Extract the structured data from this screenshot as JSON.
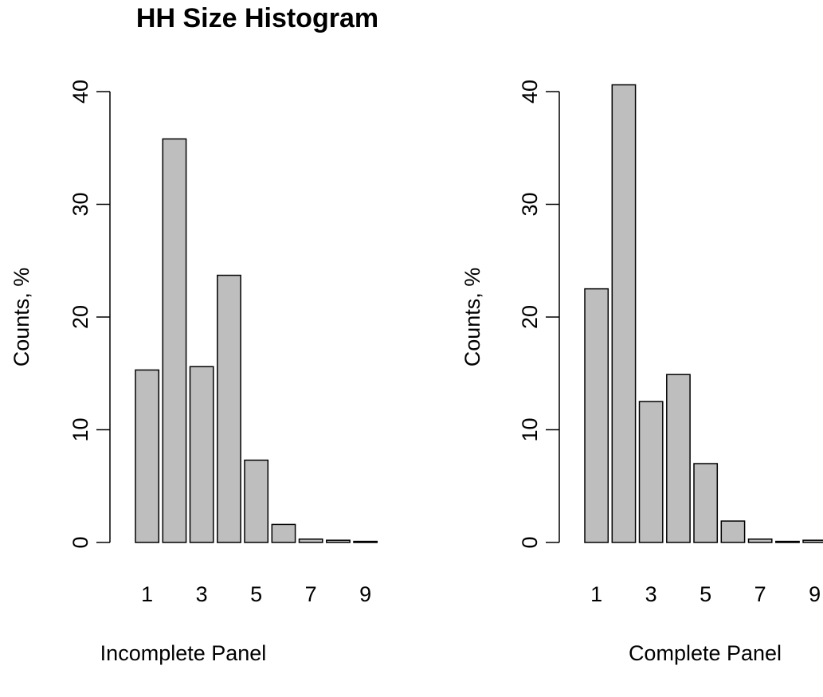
{
  "chart_data": [
    {
      "type": "bar",
      "title": "HH Size Histogram",
      "xlabel": "Incomplete Panel",
      "ylabel": "Counts, %",
      "categories": [
        "1",
        "2",
        "3",
        "4",
        "5",
        "6",
        "7",
        "8",
        "9"
      ],
      "x_tick_labels": [
        "1",
        "3",
        "5",
        "7",
        "9"
      ],
      "y_ticks": [
        0,
        10,
        20,
        30,
        40
      ],
      "ylim": [
        0,
        40
      ],
      "grid": false,
      "colors": {
        "bar_fill": "#bebebe",
        "bar_stroke": "#000000"
      },
      "values": [
        15.3,
        35.8,
        15.6,
        23.7,
        7.3,
        1.6,
        0.3,
        0.2,
        0.1
      ]
    },
    {
      "type": "bar",
      "title": "",
      "xlabel": "Complete Panel",
      "ylabel": "Counts, %",
      "categories": [
        "1",
        "2",
        "3",
        "4",
        "5",
        "6",
        "7",
        "8",
        "9"
      ],
      "x_tick_labels": [
        "1",
        "3",
        "5",
        "7",
        "9"
      ],
      "y_ticks": [
        0,
        10,
        20,
        30,
        40
      ],
      "ylim": [
        0,
        40
      ],
      "grid": false,
      "colors": {
        "bar_fill": "#bebebe",
        "bar_stroke": "#000000"
      },
      "values": [
        22.5,
        40.6,
        12.5,
        14.9,
        7.0,
        1.9,
        0.3,
        0.1,
        0.2
      ]
    }
  ]
}
